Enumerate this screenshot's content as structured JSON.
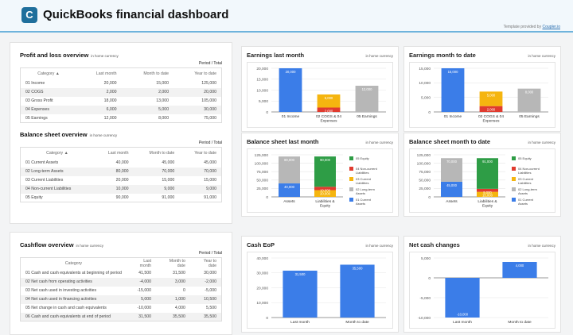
{
  "header": {
    "title": "QuickBooks financial dashboard",
    "logo_letter": "C",
    "credit_prefix": "Template provided by ",
    "credit_link": "Coupler.io"
  },
  "pl": {
    "title": "Profit and loss overview",
    "subtitle": "in home currency",
    "period": "Period / Total",
    "columns": [
      "Category ▲",
      "Last month",
      "Month to date",
      "Year to date"
    ],
    "rows": [
      [
        "01 Income",
        "20,000",
        "15,000",
        "125,000"
      ],
      [
        "02 COGS",
        "2,000",
        "2,000",
        "20,000"
      ],
      [
        "03 Gross Profit",
        "18,000",
        "13,000",
        "105,000"
      ],
      [
        "04 Expenses",
        "6,000",
        "5,000",
        "30,000"
      ],
      [
        "05 Earnings",
        "12,000",
        "8,000",
        "75,000"
      ]
    ]
  },
  "bs": {
    "title": "Balance sheet overview",
    "subtitle": "in home currency",
    "period": "Period / Total",
    "columns": [
      "Category ▲",
      "Last month",
      "Month to date",
      "Year to date"
    ],
    "rows": [
      [
        "01 Current Assets",
        "40,000",
        "45,000",
        "45,000"
      ],
      [
        "02 Long-term Assets",
        "80,000",
        "70,000",
        "70,000"
      ],
      [
        "03 Current Liabilities",
        "20,000",
        "15,000",
        "15,000"
      ],
      [
        "04 Non-current Liabilities",
        "10,000",
        "9,000",
        "9,000"
      ],
      [
        "05 Equity",
        "90,000",
        "91,000",
        "91,000"
      ]
    ]
  },
  "cf": {
    "title": "Cashflow overview",
    "subtitle": "in home currency",
    "period": "Period / Total",
    "columns": [
      "Category",
      "Last month",
      "Month to date",
      "Year to date"
    ],
    "rows": [
      [
        "01 Cash and cash equivalents at beginning of period",
        "41,500",
        "31,500",
        "30,000"
      ],
      [
        "02 Net cash from operating activities",
        "-4,000",
        "3,000",
        "-2,000"
      ],
      [
        "03 Net cash used in investing activities",
        "-15,000",
        "0",
        "-5,000"
      ],
      [
        "04 Net cash used in financing activities",
        "5,000",
        "1,000",
        "10,500"
      ],
      [
        "05 Net change in cash and cash equivalents",
        "-10,000",
        "4,000",
        "5,500"
      ],
      [
        "06 Cash and cash equivalents at end of period",
        "31,500",
        "35,500",
        "35,500"
      ]
    ]
  },
  "colors": {
    "income": "#3b7de8",
    "cogs": "#e03b2f",
    "expenses": "#f5b50f",
    "earnings": "#b7b7b7",
    "equity": "#2e9d46",
    "current_assets": "#3b7de8",
    "long_term_assets": "#b7b7b7",
    "current_liabilities": "#f5b50f",
    "noncurrent_liabilities": "#e03b2f"
  },
  "chart_data": [
    {
      "type": "bar",
      "stacked": true,
      "title": "Earnings last month",
      "subtitle": "in home currency",
      "categories": [
        "01 Income",
        "02 COGS & 04 Expenses",
        "05 Earnings"
      ],
      "ylim": [
        0,
        20000
      ],
      "ticks": [
        0,
        5000,
        10000,
        15000,
        20000
      ],
      "legend": "none",
      "series": [
        {
          "name": "01 Income",
          "color": "#3b7de8",
          "values": [
            20000,
            0,
            0
          ]
        },
        {
          "name": "02 COGS",
          "color": "#e03b2f",
          "values": [
            0,
            2000,
            0
          ]
        },
        {
          "name": "04 Expenses",
          "color": "#f5b50f",
          "values": [
            0,
            6000,
            0
          ]
        },
        {
          "name": "05 Earnings",
          "color": "#b7b7b7",
          "values": [
            0,
            0,
            12000
          ]
        }
      ]
    },
    {
      "type": "bar",
      "stacked": true,
      "title": "Earnings month to date",
      "subtitle": "in home currency",
      "categories": [
        "01 Income",
        "02 COGS & 04 Expenses",
        "05 Earnings"
      ],
      "ylim": [
        0,
        15000
      ],
      "ticks": [
        0,
        5000,
        10000,
        15000
      ],
      "legend": "none",
      "series": [
        {
          "name": "01 Income",
          "color": "#3b7de8",
          "values": [
            15000,
            0,
            0
          ]
        },
        {
          "name": "02 COGS",
          "color": "#e03b2f",
          "values": [
            0,
            2000,
            0
          ]
        },
        {
          "name": "04 Expenses",
          "color": "#f5b50f",
          "values": [
            0,
            5000,
            0
          ]
        },
        {
          "name": "05 Earnings",
          "color": "#b7b7b7",
          "values": [
            0,
            0,
            8000
          ]
        }
      ]
    },
    {
      "type": "bar",
      "stacked": true,
      "title": "Balance sheet last month",
      "subtitle": "in home currency",
      "categories": [
        "Assets",
        "Liabilities & Equity"
      ],
      "ylim": [
        0,
        125000
      ],
      "ticks": [
        0,
        25000,
        50000,
        75000,
        100000,
        125000
      ],
      "legend": "right",
      "series": [
        {
          "name": "01 Current Assets",
          "color": "#3b7de8",
          "values": [
            40000,
            0
          ]
        },
        {
          "name": "02 Long-term Assets",
          "color": "#b7b7b7",
          "values": [
            80000,
            0
          ]
        },
        {
          "name": "03 Current Liabilities",
          "color": "#f5b50f",
          "values": [
            0,
            20000
          ]
        },
        {
          "name": "04 Non-current Liabilities",
          "color": "#e03b2f",
          "values": [
            0,
            10000
          ]
        },
        {
          "name": "05 Equity",
          "color": "#2e9d46",
          "values": [
            0,
            90000
          ]
        }
      ]
    },
    {
      "type": "bar",
      "stacked": true,
      "title": "Balance sheet month to date",
      "subtitle": "in home currency",
      "categories": [
        "Assets",
        "Liabilities & Equity"
      ],
      "ylim": [
        0,
        125000
      ],
      "ticks": [
        0,
        25000,
        50000,
        75000,
        100000,
        125000
      ],
      "legend": "right",
      "series": [
        {
          "name": "01 Current Assets",
          "color": "#3b7de8",
          "values": [
            45000,
            0
          ]
        },
        {
          "name": "02 Long-term Assets",
          "color": "#b7b7b7",
          "values": [
            70000,
            0
          ]
        },
        {
          "name": "03 Current Liabilities",
          "color": "#f5b50f",
          "values": [
            0,
            15000
          ]
        },
        {
          "name": "04 Non-current Liabilities",
          "color": "#e03b2f",
          "values": [
            0,
            9000
          ]
        },
        {
          "name": "05 Equity",
          "color": "#2e9d46",
          "values": [
            0,
            91000
          ]
        }
      ]
    },
    {
      "type": "bar",
      "stacked": false,
      "title": "Cash EoP",
      "subtitle": "in home currency",
      "categories": [
        "Last month",
        "Month to date"
      ],
      "ylim": [
        0,
        40000
      ],
      "ticks": [
        0,
        10000,
        20000,
        30000,
        40000
      ],
      "legend": "none",
      "series": [
        {
          "name": "Cash EoP",
          "color": "#3b7de8",
          "values": [
            31500,
            35500
          ]
        }
      ]
    },
    {
      "type": "bar",
      "stacked": false,
      "title": "Net cash changes",
      "subtitle": "in home currency",
      "categories": [
        "Last month",
        "Month to date"
      ],
      "ylim": [
        -10000,
        5000
      ],
      "ticks": [
        -10000,
        -5000,
        0,
        5000
      ],
      "legend": "none",
      "series": [
        {
          "name": "Net cash changes",
          "color": "#3b7de8",
          "values": [
            -10000,
            4000
          ]
        }
      ]
    }
  ]
}
